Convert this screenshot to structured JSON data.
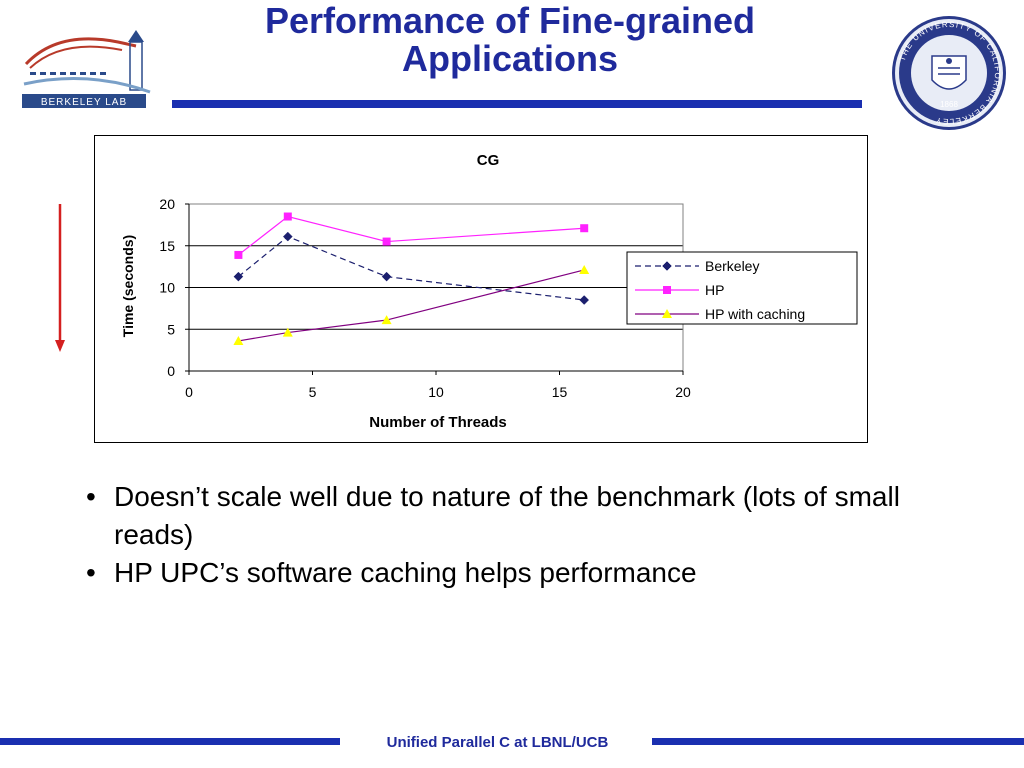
{
  "slide": {
    "title_line1": "Performance of Fine-grained",
    "title_line2": "Applications",
    "bullets": [
      "Doesn’t scale well due to nature of the benchmark (lots of small reads)",
      "HP UPC’s software caching helps performance"
    ],
    "footer": "Unified Parallel C at LBNL/UCB",
    "logo_text": "BERKELEY LAB",
    "seal_text": "THE UNIVERSITY OF CALIFORNIA BERKELEY",
    "seal_year": "1868",
    "colors": {
      "title": "#1f2a9c",
      "rule": "#1a2fb0",
      "arrow": "#d42020"
    }
  },
  "chart_data": {
    "type": "line",
    "title": "CG",
    "xlabel": "Number of Threads",
    "ylabel": "Time (seconds)",
    "xlim": [
      0,
      20
    ],
    "ylim": [
      0,
      20
    ],
    "xticks": [
      0,
      5,
      10,
      15,
      20
    ],
    "yticks": [
      0,
      5,
      10,
      15,
      20
    ],
    "grid": "horizontal",
    "legend_position": "right",
    "series": [
      {
        "name": "Berkeley",
        "x": [
          2,
          4,
          8,
          16
        ],
        "y": [
          11.3,
          16.1,
          11.3,
          8.5
        ],
        "color": "#1b1f6e",
        "dash": "dashed",
        "marker": "diamond"
      },
      {
        "name": "HP",
        "x": [
          2,
          4,
          8,
          16
        ],
        "y": [
          13.9,
          18.5,
          15.5,
          17.1
        ],
        "color": "#ff22ff",
        "dash": "solid",
        "marker": "square"
      },
      {
        "name": "HP with caching",
        "x": [
          2,
          4,
          8,
          16
        ],
        "y": [
          3.6,
          4.6,
          6.1,
          12.1
        ],
        "color": "#800080",
        "marker_color": "#ffff00",
        "dash": "solid",
        "marker": "triangle"
      }
    ]
  }
}
